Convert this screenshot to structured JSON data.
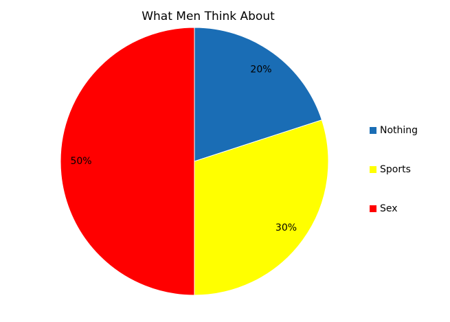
{
  "chart_data": {
    "type": "pie",
    "title": "What Men Think About",
    "categories": [
      "Nothing",
      "Sports",
      "Sex"
    ],
    "values": [
      20,
      30,
      50
    ],
    "value_labels": [
      "20%",
      "30%",
      "50%"
    ],
    "colors": [
      "#1a6db5",
      "#ffff00",
      "#ff0000"
    ],
    "legend": "right"
  }
}
